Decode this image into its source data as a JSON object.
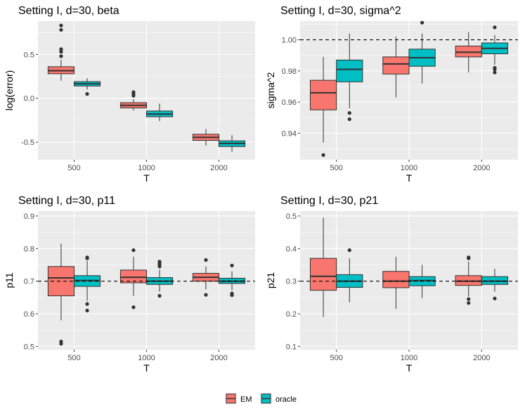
{
  "colors": {
    "EM": "#F8766D",
    "oracle": "#00BFC4",
    "panel_bg": "#EBEBEB",
    "grid": "#FFFFFF",
    "text": "#000000",
    "tick_text": "#4D4D4D"
  },
  "legend": {
    "entries": [
      {
        "label": "EM",
        "color": "#F8766D"
      },
      {
        "label": "oracle",
        "color": "#00BFC4"
      }
    ],
    "position": "bottom"
  },
  "chart_data": [
    {
      "type": "boxplot",
      "title": "Setting I, d=30, beta",
      "xlabel": "T",
      "ylabel": "log(error)",
      "categories": [
        "500",
        "1000",
        "2000"
      ],
      "ylim": [
        -0.7,
        0.88
      ],
      "yticks": [
        -0.5,
        0.0,
        0.5
      ],
      "ytick_labels": [
        "-0.5",
        "0.0",
        "0.5"
      ],
      "reference_line": null,
      "series": [
        {
          "name": "EM",
          "boxes": [
            {
              "q1": 0.28,
              "median": 0.315,
              "q3": 0.36,
              "lower": 0.2,
              "upper": 0.44,
              "outliers": [
                0.48,
                0.53,
                0.56,
                0.78,
                0.83
              ]
            },
            {
              "q1": -0.11,
              "median": -0.08,
              "q3": -0.05,
              "lower": -0.14,
              "upper": -0.01,
              "outliers": [
                0.03,
                0.05,
                0.07
              ]
            },
            {
              "q1": -0.48,
              "median": -0.445,
              "q3": -0.41,
              "lower": -0.54,
              "upper": -0.35,
              "outliers": []
            }
          ]
        },
        {
          "name": "oracle",
          "boxes": [
            {
              "q1": 0.14,
              "median": 0.165,
              "q3": 0.19,
              "lower": 0.1,
              "upper": 0.23,
              "outliers": [
                0.05
              ]
            },
            {
              "q1": -0.21,
              "median": -0.18,
              "q3": -0.145,
              "lower": -0.26,
              "upper": -0.06,
              "outliers": []
            },
            {
              "q1": -0.55,
              "median": -0.515,
              "q3": -0.485,
              "lower": -0.61,
              "upper": -0.42,
              "outliers": []
            }
          ]
        }
      ]
    },
    {
      "type": "boxplot",
      "title": "Setting I, d=30, sigma^2",
      "xlabel": "T",
      "ylabel": "sigma^2",
      "categories": [
        "500",
        "1000",
        "2000"
      ],
      "ylim": [
        0.923,
        1.012
      ],
      "yticks": [
        0.94,
        0.96,
        0.98,
        1.0
      ],
      "ytick_labels": [
        "0.94",
        "0.96",
        "0.98",
        "1.00"
      ],
      "reference_line": 1.0,
      "series": [
        {
          "name": "EM",
          "boxes": [
            {
              "q1": 0.955,
              "median": 0.966,
              "q3": 0.974,
              "lower": 0.934,
              "upper": 0.989,
              "outliers": [
                0.926
              ]
            },
            {
              "q1": 0.978,
              "median": 0.9845,
              "q3": 0.989,
              "lower": 0.963,
              "upper": 1.002,
              "outliers": []
            },
            {
              "q1": 0.989,
              "median": 0.992,
              "q3": 0.996,
              "lower": 0.979,
              "upper": 1.005,
              "outliers": []
            }
          ]
        },
        {
          "name": "oracle",
          "boxes": [
            {
              "q1": 0.973,
              "median": 0.981,
              "q3": 0.987,
              "lower": 0.956,
              "upper": 1.004,
              "outliers": [
                0.949,
                0.953
              ]
            },
            {
              "q1": 0.983,
              "median": 0.9885,
              "q3": 0.994,
              "lower": 0.972,
              "upper": 1.004,
              "outliers": [
                1.011
              ]
            },
            {
              "q1": 0.991,
              "median": 0.9945,
              "q3": 0.998,
              "lower": 0.984,
              "upper": 1.003,
              "outliers": [
                0.979,
                0.981,
                0.982,
                1.008
              ]
            }
          ]
        }
      ]
    },
    {
      "type": "boxplot",
      "title": "Setting I, d=30, p11",
      "xlabel": "T",
      "ylabel": "p11",
      "categories": [
        "500",
        "1000",
        "2000"
      ],
      "ylim": [
        0.49,
        0.915
      ],
      "yticks": [
        0.5,
        0.6,
        0.7,
        0.8,
        0.9
      ],
      "ytick_labels": [
        "0.5",
        "0.6",
        "0.7",
        "0.8",
        "0.9"
      ],
      "reference_line": 0.7,
      "series": [
        {
          "name": "EM",
          "boxes": [
            {
              "q1": 0.655,
              "median": 0.71,
              "q3": 0.745,
              "lower": 0.58,
              "upper": 0.815,
              "outliers": [
                0.508,
                0.515
              ]
            },
            {
              "q1": 0.695,
              "median": 0.712,
              "q3": 0.734,
              "lower": 0.655,
              "upper": 0.775,
              "outliers": [
                0.62,
                0.795
              ]
            },
            {
              "q1": 0.7,
              "median": 0.712,
              "q3": 0.724,
              "lower": 0.675,
              "upper": 0.745,
              "outliers": [
                0.658,
                0.765
              ]
            }
          ]
        },
        {
          "name": "oracle",
          "boxes": [
            {
              "q1": 0.684,
              "median": 0.702,
              "q3": 0.717,
              "lower": 0.64,
              "upper": 0.762,
              "outliers": [
                0.61,
                0.63,
                0.77,
                0.773
              ]
            },
            {
              "q1": 0.69,
              "median": 0.7,
              "q3": 0.711,
              "lower": 0.668,
              "upper": 0.735,
              "outliers": [
                0.655,
                0.745,
                0.75,
                0.755,
                0.76
              ]
            },
            {
              "q1": 0.693,
              "median": 0.7,
              "q3": 0.709,
              "lower": 0.672,
              "upper": 0.73,
              "outliers": [
                0.657,
                0.662,
                0.748
              ]
            }
          ]
        }
      ]
    },
    {
      "type": "boxplot",
      "title": "Setting I, d=30, p21",
      "xlabel": "T",
      "ylabel": "p21",
      "categories": [
        "500",
        "1000",
        "2000"
      ],
      "ylim": [
        0.09,
        0.515
      ],
      "yticks": [
        0.1,
        0.2,
        0.3,
        0.4,
        0.5
      ],
      "ytick_labels": [
        "0.1",
        "0.2",
        "0.3",
        "0.4",
        "0.5"
      ],
      "reference_line": 0.3,
      "series": [
        {
          "name": "EM",
          "boxes": [
            {
              "q1": 0.272,
              "median": 0.315,
              "q3": 0.37,
              "lower": 0.19,
              "upper": 0.495,
              "outliers": []
            },
            {
              "q1": 0.28,
              "median": 0.3,
              "q3": 0.33,
              "lower": 0.215,
              "upper": 0.375,
              "outliers": []
            },
            {
              "q1": 0.287,
              "median": 0.3,
              "q3": 0.317,
              "lower": 0.253,
              "upper": 0.36,
              "outliers": [
                0.233,
                0.245,
                0.37,
                0.373
              ]
            }
          ]
        },
        {
          "name": "oracle",
          "boxes": [
            {
              "q1": 0.281,
              "median": 0.3,
              "q3": 0.32,
              "lower": 0.235,
              "upper": 0.37,
              "outliers": [
                0.395
              ]
            },
            {
              "q1": 0.286,
              "median": 0.302,
              "q3": 0.314,
              "lower": 0.248,
              "upper": 0.35,
              "outliers": []
            },
            {
              "q1": 0.29,
              "median": 0.3,
              "q3": 0.314,
              "lower": 0.268,
              "upper": 0.338,
              "outliers": [
                0.247
              ]
            }
          ]
        }
      ]
    }
  ]
}
